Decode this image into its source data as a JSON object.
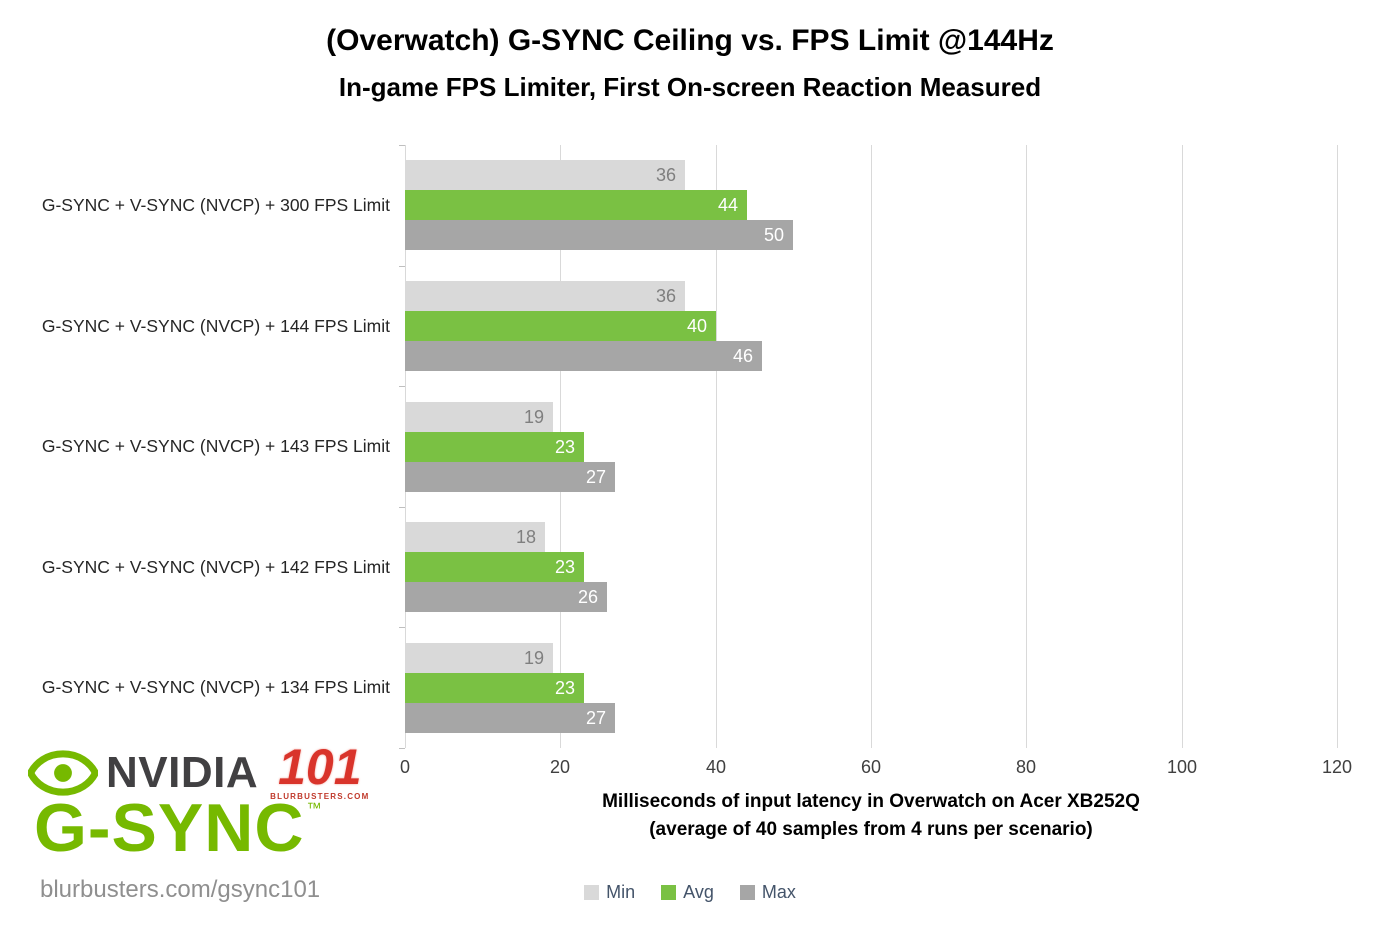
{
  "chart_data": {
    "type": "bar",
    "orientation": "horizontal",
    "title": "(Overwatch) G-SYNC Ceiling vs. FPS Limit @144Hz",
    "subtitle": "In-game FPS Limiter, First On-screen Reaction Measured",
    "categories": [
      "G-SYNC + V-SYNC (NVCP) + 300 FPS Limit",
      "G-SYNC + V-SYNC (NVCP) + 144 FPS Limit",
      "G-SYNC + V-SYNC (NVCP) + 143 FPS Limit",
      "G-SYNC + V-SYNC (NVCP) + 142 FPS Limit",
      "G-SYNC + V-SYNC (NVCP) + 134 FPS Limit"
    ],
    "series": [
      {
        "name": "Min",
        "color": "#d9d9d9",
        "label_color": "#7f7f7f",
        "values": [
          36,
          36,
          19,
          18,
          19
        ]
      },
      {
        "name": "Avg",
        "color": "#7ac143",
        "label_color": "#ffffff",
        "values": [
          44,
          40,
          23,
          23,
          23
        ]
      },
      {
        "name": "Max",
        "color": "#a6a6a6",
        "label_color": "#ffffff",
        "values": [
          50,
          46,
          27,
          26,
          27
        ]
      }
    ],
    "xlabel": "Milliseconds of input latency in Overwatch on Acer XB252Q",
    "xlabel2": "(average of 40 samples from 4 runs per scenario)",
    "xlim": [
      0,
      120
    ],
    "xticks": [
      0,
      20,
      40,
      60,
      80,
      100,
      120
    ],
    "grid": true,
    "legend_position": "bottom"
  },
  "branding": {
    "nvidia": "NVIDIA",
    "logo_101": "101",
    "blurbusters_small": "BLURBUSTERS.COM",
    "gsync": "G-SYNC",
    "tm": "™",
    "url": "blurbusters.com/gsync101",
    "green": "#76b900",
    "red": "#d9342b"
  }
}
